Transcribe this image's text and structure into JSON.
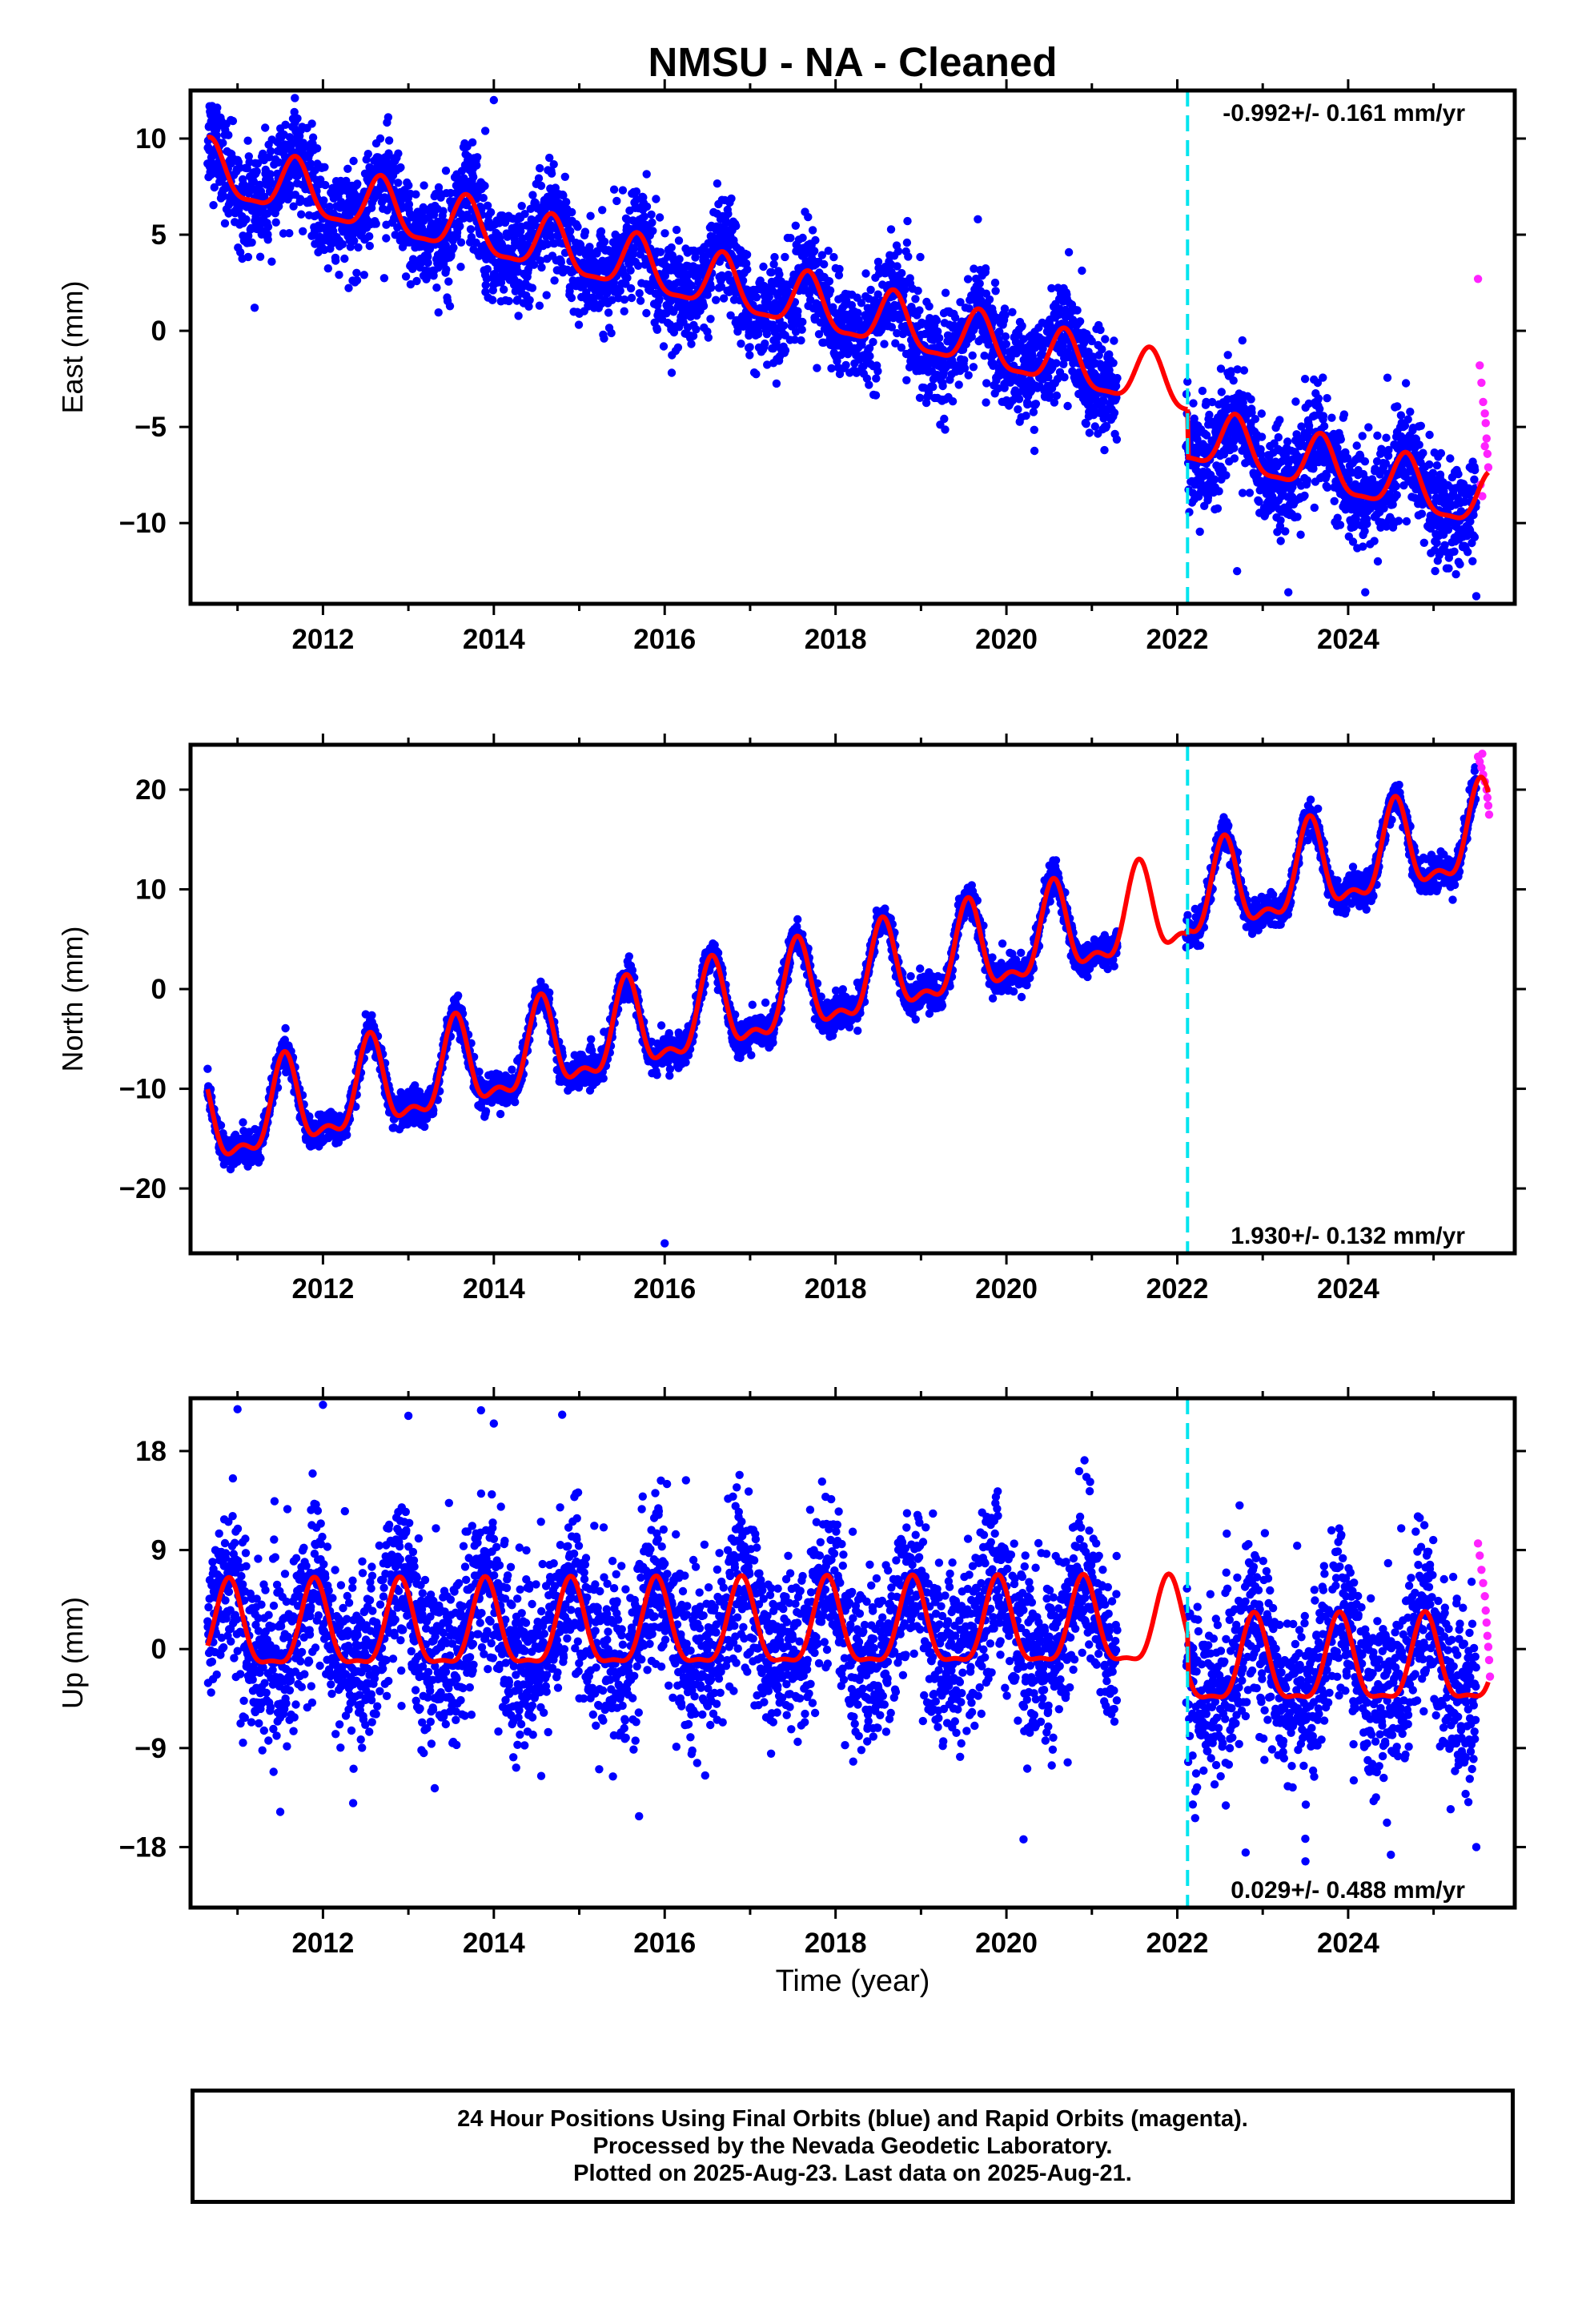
{
  "figure": {
    "title": "NMSU  - NA - Cleaned",
    "xlabel": "Time (year)"
  },
  "footer": {
    "line1": "24 Hour Positions Using Final Orbits (blue) and Rapid Orbits (magenta).",
    "line2": "Processed by the Nevada Geodetic Laboratory.",
    "line3": "Plotted on 2025-Aug-23. Last data on 2025-Aug-21."
  },
  "colors": {
    "final_orbits": "#0000ff",
    "rapid_orbits": "#ff22ff",
    "model": "#ff0000",
    "break": "#00e5ee",
    "axes": "#000000"
  },
  "chart_data": [
    {
      "type": "scatter",
      "component": "East",
      "ylabel": "East (mm)",
      "rate_label": "-0.992+/- 0.161 mm/yr",
      "rate_label_position": "top-right",
      "xlim": [
        2010.45,
        2025.95
      ],
      "ylim": [
        -14.2,
        12.5
      ],
      "xticks": [
        2012,
        2014,
        2016,
        2018,
        2020,
        2022,
        2024
      ],
      "yticks": [
        10,
        5,
        0,
        -5,
        -10
      ],
      "ytick_labels": [
        "10",
        "5",
        "0",
        "−5",
        "−10"
      ],
      "equipment_break": 2022.12,
      "data_start": 2010.65,
      "data_gap": [
        2021.3,
        2022.1
      ],
      "data_end": 2025.64,
      "rapid_start": 2025.5,
      "model": {
        "level_at_start": 8.3,
        "rate_mm_per_yr": -0.992,
        "annual_amp": 1.4,
        "annual_phase_year": 0.68,
        "semiannual_amp": 0.4,
        "offset_at_break": -2.5
      },
      "scatter_sd": 1.3,
      "outliers": [
        [
          2014.0,
          12.0
        ],
        [
          2013.75,
          9.8
        ],
        [
          2013.9,
          10.4
        ],
        [
          2011.2,
          1.2
        ],
        [
          2022.7,
          -12.5
        ],
        [
          2024.2,
          -13.6
        ],
        [
          2025.5,
          -13.8
        ],
        [
          2023.3,
          -13.6
        ]
      ],
      "rapid_points": [
        [
          2025.52,
          2.7
        ],
        [
          2025.54,
          -1.8
        ],
        [
          2025.56,
          -2.7
        ],
        [
          2025.58,
          -3.7
        ],
        [
          2025.6,
          -4.3
        ],
        [
          2025.61,
          -4.8
        ],
        [
          2025.62,
          -5.6
        ],
        [
          2025.63,
          -6.4
        ],
        [
          2025.64,
          -7.1
        ],
        [
          2025.55,
          -8.0
        ],
        [
          2025.57,
          -8.6
        ],
        [
          2025.6,
          -6.0
        ]
      ]
    },
    {
      "type": "scatter",
      "component": "North",
      "ylabel": "North (mm)",
      "rate_label": "1.930+/- 0.132 mm/yr",
      "rate_label_position": "bottom-right",
      "xlim": [
        2010.45,
        2025.95
      ],
      "ylim": [
        -26.5,
        24.5
      ],
      "xticks": [
        2012,
        2014,
        2016,
        2018,
        2020,
        2022,
        2024
      ],
      "yticks": [
        20,
        10,
        0,
        -10,
        -20
      ],
      "ytick_labels": [
        "20",
        "10",
        "0",
        "−10",
        "−20"
      ],
      "equipment_break": 2022.12,
      "data_start": 2010.65,
      "data_gap": [
        2021.3,
        2022.1
      ],
      "data_end": 2025.64,
      "rapid_start": 2025.5,
      "model": {
        "level_at_start": -14.0,
        "rate_mm_per_yr": 1.93,
        "annual_amp": 4.2,
        "annual_phase_year": 0.55,
        "semiannual_amp": 1.8,
        "offset_at_break": 0.5
      },
      "scatter_sd": 0.8,
      "outliers": [
        [
          2016.0,
          -25.5
        ],
        [
          2010.65,
          -8.0
        ]
      ],
      "rapid_points": [
        [
          2025.52,
          23.3
        ],
        [
          2025.54,
          22.8
        ],
        [
          2025.56,
          22.2
        ],
        [
          2025.58,
          21.5
        ],
        [
          2025.6,
          20.8
        ],
        [
          2025.62,
          20.0
        ],
        [
          2025.63,
          19.2
        ],
        [
          2025.64,
          18.4
        ],
        [
          2025.65,
          17.5
        ],
        [
          2025.57,
          23.6
        ]
      ]
    },
    {
      "type": "scatter",
      "component": "Up",
      "ylabel": "Up (mm)",
      "rate_label": "0.029+/- 0.488 mm/yr",
      "rate_label_position": "bottom-right",
      "xlim": [
        2010.45,
        2025.95
      ],
      "ylim": [
        -23.5,
        22.8
      ],
      "xticks": [
        2012,
        2014,
        2016,
        2018,
        2020,
        2022,
        2024
      ],
      "yticks": [
        18,
        9,
        0,
        -9,
        -18
      ],
      "ytick_labels": [
        "18",
        "9",
        "0",
        "−9",
        "−18"
      ],
      "equipment_break": 2022.12,
      "data_start": 2010.65,
      "data_gap": [
        2021.3,
        2022.1
      ],
      "data_end": 2025.64,
      "rapid_start": 2025.5,
      "model": {
        "level_at_start": 1.5,
        "rate_mm_per_yr": 0.029,
        "annual_amp": 3.8,
        "annual_phase_year": 0.9,
        "semiannual_amp": 1.2,
        "offset_at_break": -3.5
      },
      "scatter_sd": 3.8,
      "outliers": [
        [
          2011.0,
          21.8
        ],
        [
          2012.0,
          22.2
        ],
        [
          2013.0,
          21.2
        ],
        [
          2013.85,
          21.7
        ],
        [
          2014.8,
          21.3
        ],
        [
          2014.0,
          20.5
        ],
        [
          2011.5,
          -14.8
        ],
        [
          2015.7,
          -15.2
        ],
        [
          2020.2,
          -17.3
        ],
        [
          2022.8,
          -18.5
        ],
        [
          2023.5,
          -19.3
        ],
        [
          2025.5,
          -18.0
        ],
        [
          2024.5,
          -18.7
        ]
      ],
      "rapid_points": [
        [
          2025.52,
          9.6
        ],
        [
          2025.54,
          8.5
        ],
        [
          2025.56,
          7.2
        ],
        [
          2025.58,
          6.0
        ],
        [
          2025.6,
          4.8
        ],
        [
          2025.61,
          3.5
        ],
        [
          2025.62,
          2.4
        ],
        [
          2025.63,
          1.2
        ],
        [
          2025.64,
          0.2
        ],
        [
          2025.65,
          -1.0
        ],
        [
          2025.66,
          -2.5
        ]
      ]
    }
  ]
}
